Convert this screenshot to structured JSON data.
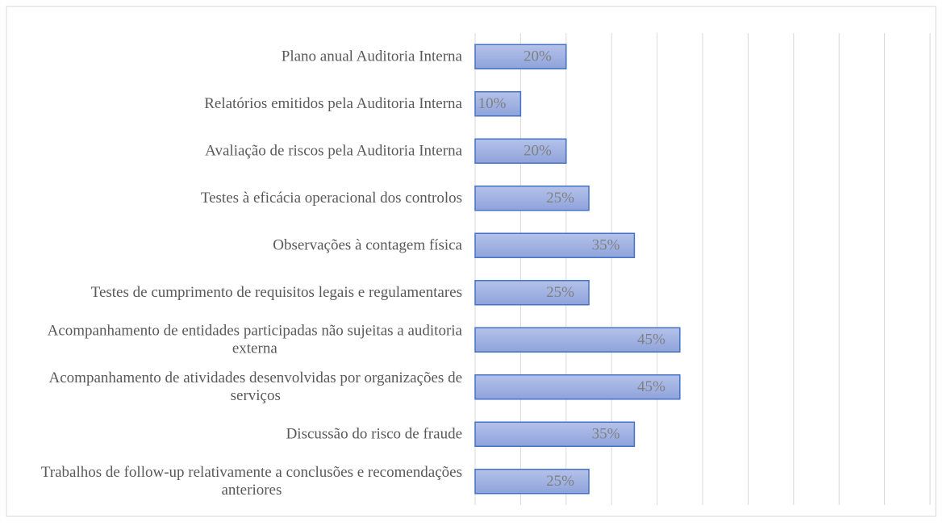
{
  "chart_data": {
    "type": "bar",
    "orientation": "horizontal",
    "categories": [
      "Plano anual Auditoria Interna",
      "Relatórios emitidos pela Auditoria Interna",
      "Avaliação de riscos pela Auditoria Interna",
      "Testes à eficácia operacional dos controlos",
      "Observações à contagem física",
      "Testes de cumprimento de requisitos legais e regulamentares",
      "Acompanhamento de entidades participadas não sujeitas a auditoria externa",
      "Acompanhamento de atividades desenvolvidas por organizações de serviços",
      "Discussão do risco de fraude",
      "Trabalhos de follow-up relativamente a conclusões e recomendações anteriores"
    ],
    "values": [
      20,
      10,
      20,
      25,
      35,
      25,
      45,
      45,
      35,
      25
    ],
    "value_labels": [
      "20%",
      "10%",
      "20%",
      "25%",
      "35%",
      "25%",
      "45%",
      "45%",
      "35%",
      "25%"
    ],
    "color": "#9fb2e2",
    "edge_color": "#4472c4",
    "xlim": [
      0,
      100
    ],
    "xticks": [
      0,
      10,
      20,
      30,
      40,
      50,
      60,
      70,
      80,
      90,
      100
    ],
    "grid": true
  }
}
